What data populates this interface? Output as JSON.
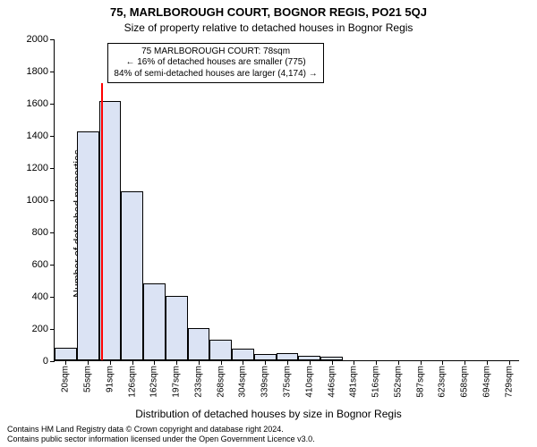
{
  "title": "75, MARLBOROUGH COURT, BOGNOR REGIS, PO21 5QJ",
  "subtitle": "Size of property relative to detached houses in Bognor Regis",
  "ylabel": "Number of detached properties",
  "xlabel": "Distribution of detached houses by size in Bognor Regis",
  "footer_line1": "Contains HM Land Registry data © Crown copyright and database right 2024.",
  "footer_line2": "Contains public sector information licensed under the Open Government Licence v3.0.",
  "chart": {
    "type": "histogram",
    "ylim": [
      0,
      2000
    ],
    "yticks": [
      0,
      200,
      400,
      600,
      800,
      1000,
      1200,
      1400,
      1600,
      1800,
      2000
    ],
    "x_categories": [
      "20sqm",
      "55sqm",
      "91sqm",
      "126sqm",
      "162sqm",
      "197sqm",
      "233sqm",
      "268sqm",
      "304sqm",
      "339sqm",
      "375sqm",
      "410sqm",
      "446sqm",
      "481sqm",
      "516sqm",
      "552sqm",
      "587sqm",
      "623sqm",
      "658sqm",
      "694sqm",
      "729sqm"
    ],
    "bar_values": [
      80,
      1420,
      1610,
      1050,
      480,
      400,
      200,
      130,
      70,
      40,
      45,
      30,
      25,
      0,
      0,
      0,
      0,
      0,
      0,
      0,
      0
    ],
    "bar_fill": "#dbe3f4",
    "bar_border": "#000000",
    "marker": {
      "position_category_index": 1.65,
      "color": "#ff0000",
      "height_value": 1720
    },
    "annotation": {
      "line1": "75 MARLBOROUGH COURT: 78sqm",
      "line2": "← 16% of detached houses are smaller (775)",
      "line3": "84% of semi-detached houses are larger (4,174) →",
      "left_category_index": 1.9,
      "top_value": 1980
    },
    "background": "#ffffff",
    "axis_color": "#000000",
    "title_fontsize": 13,
    "subtitle_fontsize": 12,
    "label_fontsize": 12,
    "tick_fontsize": 11
  }
}
